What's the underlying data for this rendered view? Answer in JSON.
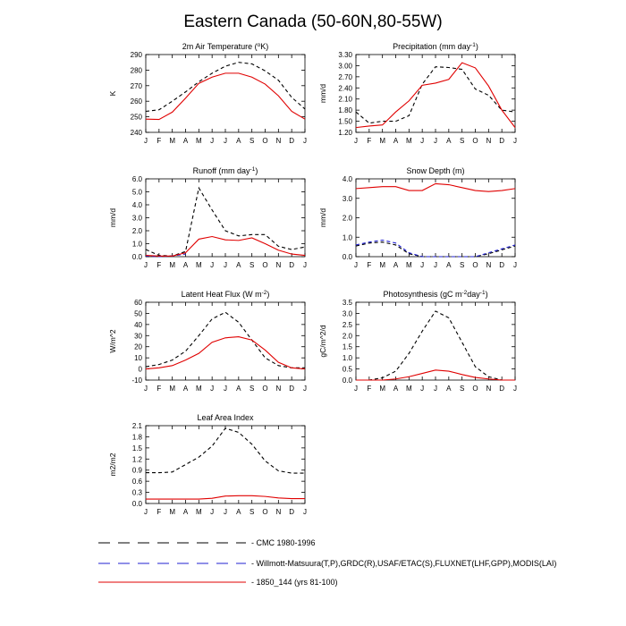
{
  "figure_title": "Eastern Canada (50-60N,80-55W)",
  "colors": {
    "cmc": "#000000",
    "obs": "#2020d0",
    "model": "#e00000"
  },
  "legend": [
    {
      "key": "cmc",
      "label": "CMC 1980-1996",
      "style": "dashed"
    },
    {
      "key": "obs",
      "label": "Willmott-Matsuura(T,P),GRDC(R),USAF/ETAC(S),FLUXNET(LHF,GPP),MODIS(LAI)",
      "style": "dashed"
    },
    {
      "key": "model",
      "label": "1850_144 (yrs 81-100)",
      "style": "solid"
    }
  ],
  "chart_data": [
    {
      "type": "line",
      "title_base": "2m Air Temperature (",
      "title_sup": "o",
      "title_end": "K)",
      "ylabel": "K",
      "x": [
        "J",
        "F",
        "M",
        "A",
        "M",
        "J",
        "J",
        "A",
        "S",
        "O",
        "N",
        "D",
        "J"
      ],
      "ylim": [
        240,
        290
      ],
      "yticks": [
        "240",
        "250",
        "260",
        "270",
        "280",
        "290"
      ],
      "series": [
        {
          "name": "CMC 1980-1996",
          "key": "cmc",
          "values": [
            253.5,
            254.5,
            260,
            266,
            272.5,
            278,
            282.5,
            285,
            284,
            279.5,
            273.5,
            262.5,
            255
          ]
        },
        {
          "name": "1850_144 (yrs 81-100)",
          "key": "model",
          "values": [
            248.5,
            248.3,
            253,
            262,
            271.5,
            275.5,
            278,
            278,
            275.5,
            271,
            263.5,
            253.5,
            248.5
          ]
        }
      ]
    },
    {
      "type": "line",
      "title_base": "Precipitation (mm day",
      "title_sup": "-1",
      "title_end": ")",
      "ylabel": "mm/d",
      "x": [
        "J",
        "F",
        "M",
        "A",
        "M",
        "J",
        "J",
        "A",
        "S",
        "O",
        "N",
        "D",
        "J"
      ],
      "ylim": [
        1.2,
        3.3
      ],
      "yticks": [
        "1.20",
        "1.50",
        "1.80",
        "2.10",
        "2.40",
        "2.70",
        "3.00",
        "3.30"
      ],
      "series": [
        {
          "name": "CMC 1980-1996",
          "key": "cmc",
          "values": [
            1.75,
            1.45,
            1.5,
            1.5,
            1.65,
            2.5,
            2.97,
            2.95,
            2.9,
            2.37,
            2.2,
            1.8,
            1.75
          ]
        },
        {
          "name": "1850_144 (yrs 81-100)",
          "key": "model",
          "values": [
            1.33,
            1.37,
            1.4,
            1.75,
            2.05,
            2.47,
            2.53,
            2.63,
            3.08,
            2.94,
            2.45,
            1.8,
            1.33
          ]
        }
      ]
    },
    {
      "type": "line",
      "title_base": "Runoff (mm day",
      "title_sup": "-1",
      "title_end": ")",
      "ylabel": "mm/d",
      "x": [
        "J",
        "F",
        "M",
        "A",
        "M",
        "J",
        "J",
        "A",
        "S",
        "O",
        "N",
        "D",
        "J"
      ],
      "ylim": [
        0,
        6
      ],
      "yticks": [
        "0.0",
        "1.0",
        "2.0",
        "3.0",
        "4.0",
        "5.0",
        "6.0"
      ],
      "series": [
        {
          "name": "CMC 1980-1996",
          "key": "cmc",
          "values": [
            0.55,
            0.1,
            0.05,
            0.4,
            5.3,
            3.6,
            2.0,
            1.6,
            1.7,
            1.7,
            0.8,
            0.55,
            0.75
          ]
        },
        {
          "name": "Willmott-Matsuura(T,P),GRDC(R),USAF/ETAC(S),FLUXNET(LHF,GPP),MODIS(LAI)",
          "key": "obs",
          "values": [
            0.05,
            0.0,
            0.05,
            0.2,
            null,
            null,
            null,
            null,
            null,
            null,
            null,
            null,
            null
          ]
        },
        {
          "name": "1850_144 (yrs 81-100)",
          "key": "model",
          "values": [
            0.1,
            0.05,
            0.05,
            0.3,
            1.35,
            1.55,
            1.3,
            1.25,
            1.45,
            1.0,
            0.5,
            0.2,
            0.1
          ]
        }
      ]
    },
    {
      "type": "line",
      "title_base": "Snow Depth (m)",
      "title_sup": "",
      "title_end": "",
      "ylabel": "mm/d",
      "x": [
        "J",
        "F",
        "M",
        "A",
        "M",
        "J",
        "J",
        "A",
        "S",
        "O",
        "N",
        "D",
        "J"
      ],
      "ylim": [
        0,
        4
      ],
      "yticks": [
        "0.0",
        "1.0",
        "2.0",
        "3.0",
        "4.0"
      ],
      "series": [
        {
          "name": "CMC 1980-1996",
          "key": "cmc",
          "values": [
            0.55,
            0.7,
            0.75,
            0.6,
            0.15,
            0.0,
            0.0,
            0.0,
            0.0,
            0.0,
            0.15,
            0.35,
            0.55
          ]
        },
        {
          "name": "Willmott-Matsuura(T,P),GRDC(R),USAF/ETAC(S),FLUXNET(LHF,GPP),MODIS(LAI)",
          "key": "obs",
          "values": [
            0.6,
            0.75,
            0.85,
            0.7,
            0.2,
            0.0,
            0.0,
            0.0,
            0.0,
            0.0,
            0.2,
            0.4,
            0.6
          ]
        },
        {
          "name": "1850_144 (yrs 81-100)",
          "key": "model",
          "values": [
            3.5,
            3.55,
            3.6,
            3.6,
            3.4,
            3.4,
            3.75,
            3.7,
            3.55,
            3.4,
            3.35,
            3.4,
            3.5
          ]
        }
      ]
    },
    {
      "type": "line",
      "title_base": "Latent Heat Flux (W m",
      "title_sup": "-2",
      "title_end": ")",
      "ylabel": "W/m^2",
      "x": [
        "J",
        "F",
        "M",
        "A",
        "M",
        "J",
        "J",
        "A",
        "S",
        "O",
        "N",
        "D",
        "J"
      ],
      "ylim": [
        -10,
        60
      ],
      "yticks": [
        "-10",
        "0",
        "10",
        "20",
        "30",
        "40",
        "50",
        "60"
      ],
      "series": [
        {
          "name": "CMC 1980-1996",
          "key": "cmc",
          "values": [
            2,
            4,
            8,
            16,
            30,
            45,
            51,
            42,
            26,
            10,
            3,
            1,
            1
          ]
        },
        {
          "name": "1850_144 (yrs 81-100)",
          "key": "model",
          "values": [
            0,
            1,
            3,
            8,
            14,
            24,
            28,
            29,
            26,
            17,
            6,
            1,
            0
          ]
        }
      ]
    },
    {
      "type": "line",
      "title_base": "Photosynthesis (gC m",
      "title_sup": "-2",
      "title_end": "day",
      "title_sup2": "-1",
      "title_end2": ")",
      "ylabel": "gC/m^2/d",
      "x": [
        "J",
        "F",
        "M",
        "A",
        "M",
        "J",
        "J",
        "A",
        "S",
        "O",
        "N",
        "D",
        "J"
      ],
      "ylim": [
        0,
        3.5
      ],
      "yticks": [
        "0.0",
        "0.5",
        "1.0",
        "1.5",
        "2.0",
        "2.5",
        "3.0",
        "3.5"
      ],
      "series": [
        {
          "name": "CMC 1980-1996",
          "key": "cmc",
          "values": [
            0.0,
            0.0,
            0.1,
            0.4,
            1.2,
            2.2,
            3.1,
            2.8,
            1.7,
            0.6,
            0.15,
            0.0,
            0.0
          ]
        },
        {
          "name": "1850_144 (yrs 81-100)",
          "key": "model",
          "values": [
            0.0,
            0.0,
            0.0,
            0.05,
            0.15,
            0.3,
            0.45,
            0.4,
            0.25,
            0.12,
            0.05,
            0.0,
            0.0
          ]
        }
      ]
    },
    {
      "type": "line",
      "title_base": "Leaf Area Index",
      "title_sup": "",
      "title_end": "",
      "ylabel": "m2/m2",
      "x": [
        "J",
        "F",
        "M",
        "A",
        "M",
        "J",
        "J",
        "A",
        "S",
        "O",
        "N",
        "D",
        "J"
      ],
      "ylim": [
        0,
        2.1
      ],
      "yticks": [
        "0.0",
        "0.3",
        "0.6",
        "0.9",
        "1.2",
        "1.5",
        "1.8",
        "2.1"
      ],
      "series": [
        {
          "name": "CMC 1980-1996",
          "key": "cmc",
          "values": [
            0.83,
            0.83,
            0.85,
            1.05,
            1.25,
            1.55,
            2.03,
            1.92,
            1.6,
            1.15,
            0.88,
            0.82,
            0.82
          ]
        },
        {
          "name": "1850_144 (yrs 81-100)",
          "key": "model",
          "values": [
            0.12,
            0.12,
            0.12,
            0.12,
            0.12,
            0.14,
            0.2,
            0.21,
            0.21,
            0.19,
            0.15,
            0.13,
            0.13
          ]
        }
      ]
    }
  ]
}
